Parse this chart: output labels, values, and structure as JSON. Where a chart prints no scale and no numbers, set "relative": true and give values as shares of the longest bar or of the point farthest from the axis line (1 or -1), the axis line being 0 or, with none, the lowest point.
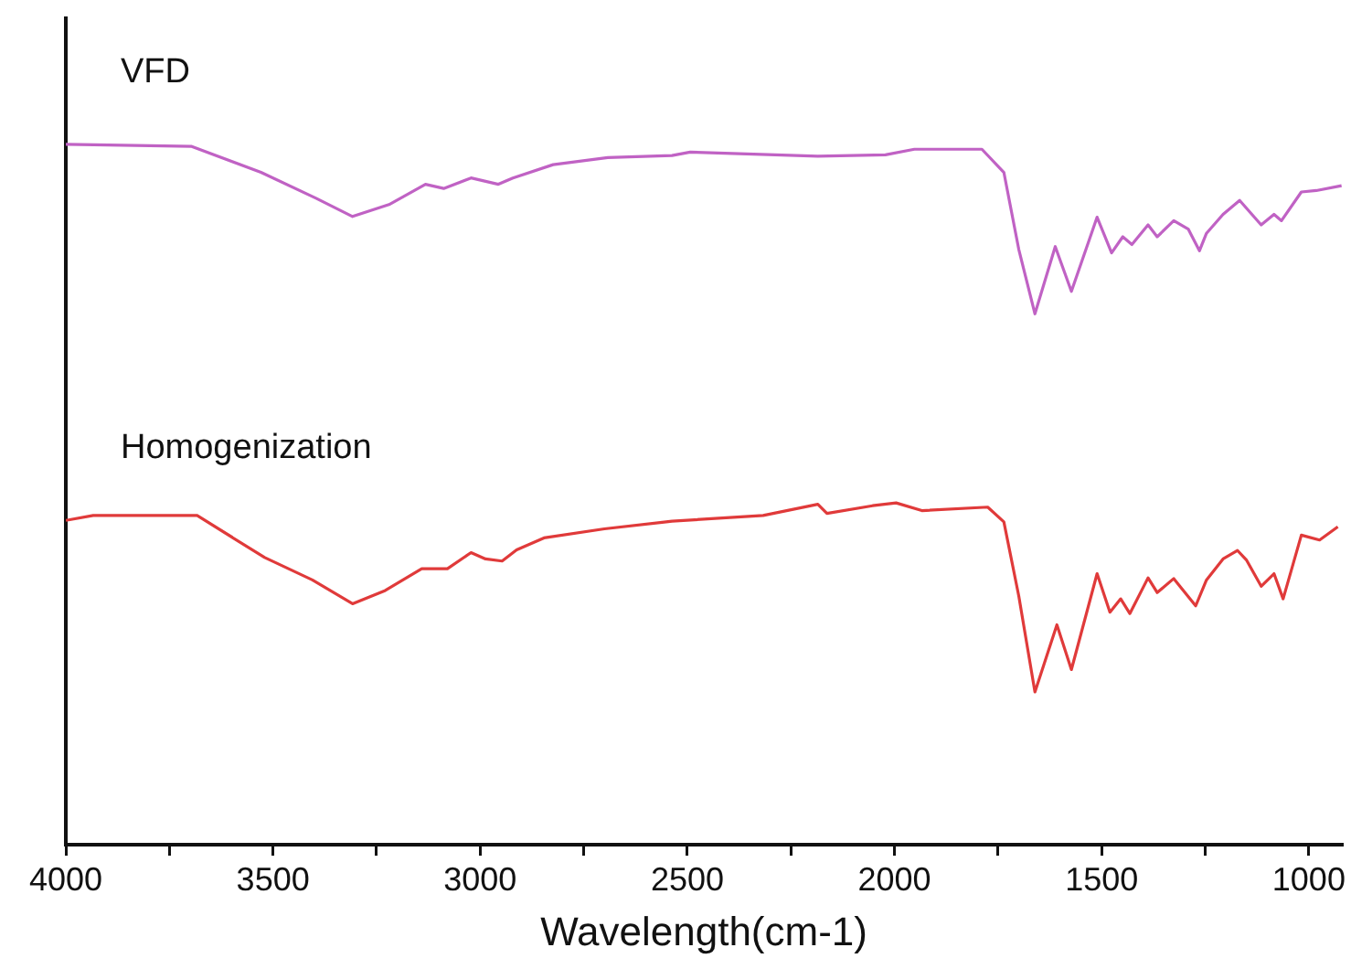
{
  "chart_data": {
    "type": "line",
    "xlabel": "Wavelength(cm-1)",
    "relative": true,
    "xlim": [
      4000,
      920
    ],
    "xticks": [
      4000,
      {
        "value": 3750,
        "label": null
      },
      3500,
      {
        "value": 3250,
        "label": null
      },
      3000,
      {
        "value": 2750,
        "label": null
      },
      2500,
      {
        "value": 2250,
        "label": null
      },
      2000,
      {
        "value": 1750,
        "label": null
      },
      1500,
      {
        "value": 1250,
        "label": null
      },
      1000
    ],
    "series": [
      {
        "name": "VFD",
        "color": "#c062c4",
        "x": [
          4000,
          3696,
          3529,
          3396,
          3308,
          3220,
          3132,
          3088,
          3022,
          2956,
          2921,
          2824,
          2692,
          2537,
          2493,
          2185,
          2022,
          1952,
          1789,
          1736,
          1700,
          1661,
          1612,
          1573,
          1511,
          1476,
          1449,
          1427,
          1388,
          1366,
          1326,
          1291,
          1264,
          1247,
          1207,
          1167,
          1115,
          1084,
          1066,
          1018,
          982,
          921
        ],
        "values": [
          1.0,
          0.997,
          0.96,
          0.923,
          0.897,
          0.914,
          0.943,
          0.937,
          0.952,
          0.943,
          0.952,
          0.971,
          0.981,
          0.984,
          0.989,
          0.983,
          0.985,
          0.993,
          0.993,
          0.96,
          0.85,
          0.758,
          0.854,
          0.79,
          0.896,
          0.845,
          0.868,
          0.857,
          0.885,
          0.868,
          0.891,
          0.879,
          0.848,
          0.873,
          0.9,
          0.92,
          0.885,
          0.9,
          0.891,
          0.932,
          0.934,
          0.941
        ]
      },
      {
        "name": "Homogenization",
        "color": "#e03a3a",
        "x": [
          4000,
          3934,
          3683,
          3520,
          3405,
          3308,
          3229,
          3141,
          3079,
          3022,
          2987,
          2947,
          2912,
          2846,
          2700,
          2551,
          2537,
          2317,
          2185,
          2163,
          2053,
          1996,
          1934,
          1775,
          1736,
          1700,
          1661,
          1608,
          1573,
          1511,
          1480,
          1454,
          1432,
          1388,
          1366,
          1326,
          1273,
          1247,
          1207,
          1172,
          1150,
          1115,
          1084,
          1062,
          1018,
          974,
          930
        ],
        "values": [
          0.463,
          0.47,
          0.47,
          0.41,
          0.378,
          0.344,
          0.363,
          0.394,
          0.394,
          0.417,
          0.408,
          0.405,
          0.421,
          0.438,
          0.451,
          0.461,
          0.462,
          0.47,
          0.486,
          0.473,
          0.484,
          0.488,
          0.477,
          0.482,
          0.461,
          0.355,
          0.218,
          0.314,
          0.25,
          0.387,
          0.332,
          0.351,
          0.33,
          0.381,
          0.36,
          0.38,
          0.341,
          0.378,
          0.408,
          0.42,
          0.406,
          0.369,
          0.387,
          0.351,
          0.442,
          0.435,
          0.454
        ]
      }
    ]
  }
}
